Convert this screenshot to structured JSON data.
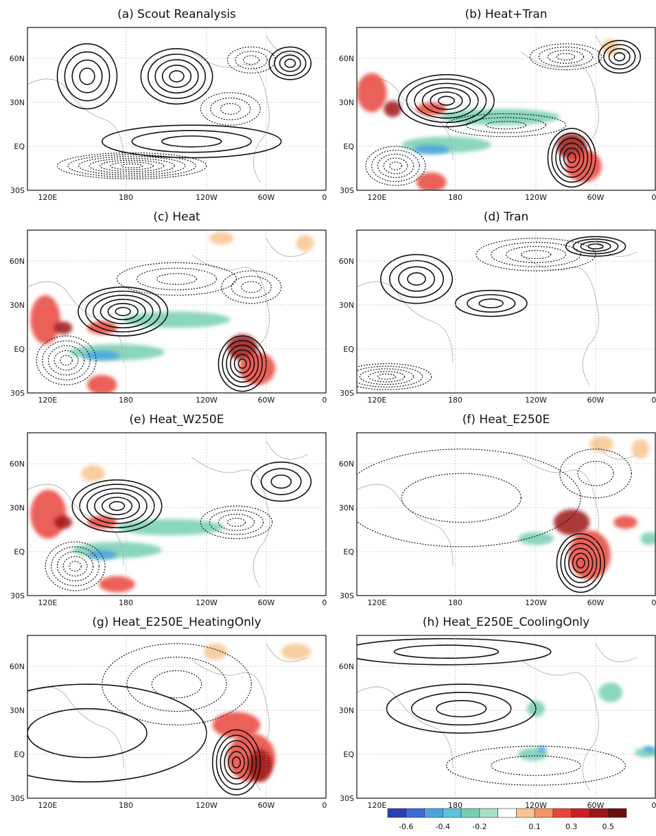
{
  "panels": [
    {
      "title": "(a) Scout Reanalysis"
    },
    {
      "title": "(b) Heat+Tran"
    },
    {
      "title": "(c) Heat"
    },
    {
      "title": "(d) Tran"
    },
    {
      "title": "(e) Heat_W250E"
    },
    {
      "title": "(f) Heat_E250E"
    },
    {
      "title": "(g) Heat_E250E_HeatingOnly"
    },
    {
      "title": "(h) Heat_E250E_CoolingOnly"
    }
  ],
  "lon_ticks": [
    "120E",
    "180",
    "120W",
    "60W",
    "0"
  ],
  "lat_ticks": [
    "60N",
    "30N",
    "EQ",
    "30S"
  ],
  "colorbar": {
    "colors": [
      "#2a3fb0",
      "#3a6bd8",
      "#4aa3e0",
      "#5cc3d8",
      "#77cfb3",
      "#a8dfc5",
      "#ffffff",
      "#f7c592",
      "#f39463",
      "#e8443a",
      "#cc1f1f",
      "#9e1515",
      "#6e0c0c"
    ],
    "labels": [
      "-0.6",
      "-0.4",
      "-0.2",
      "0.1",
      "0.3",
      "0.5"
    ]
  }
}
